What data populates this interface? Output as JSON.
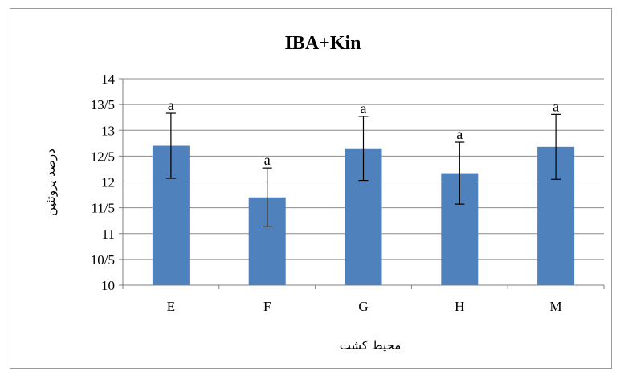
{
  "chart_data": {
    "type": "bar",
    "title": "IBA+Kin",
    "xlabel": "محیط کشت",
    "ylabel": "درصد پروتئین",
    "categories": [
      "E",
      "F",
      "G",
      "H",
      "M"
    ],
    "values": [
      12.7,
      11.7,
      12.65,
      12.17,
      12.68
    ],
    "error": [
      0.63,
      0.57,
      0.62,
      0.6,
      0.63
    ],
    "data_labels": [
      "a",
      "a",
      "a",
      "a",
      "a"
    ],
    "ylim": [
      10,
      14
    ],
    "ytick_values": [
      10,
      10.5,
      11,
      11.5,
      12,
      12.5,
      13,
      13.5,
      14
    ],
    "ytick_labels": [
      "10",
      "10/5",
      "11",
      "11/5",
      "12",
      "12/5",
      "13",
      "13/5",
      "14"
    ],
    "grid": true,
    "legend": "none",
    "colors": {
      "bar": "#4f81bd",
      "grid": "#8c8c8c",
      "axis": "#7f7f7f",
      "error": "#000000"
    }
  }
}
